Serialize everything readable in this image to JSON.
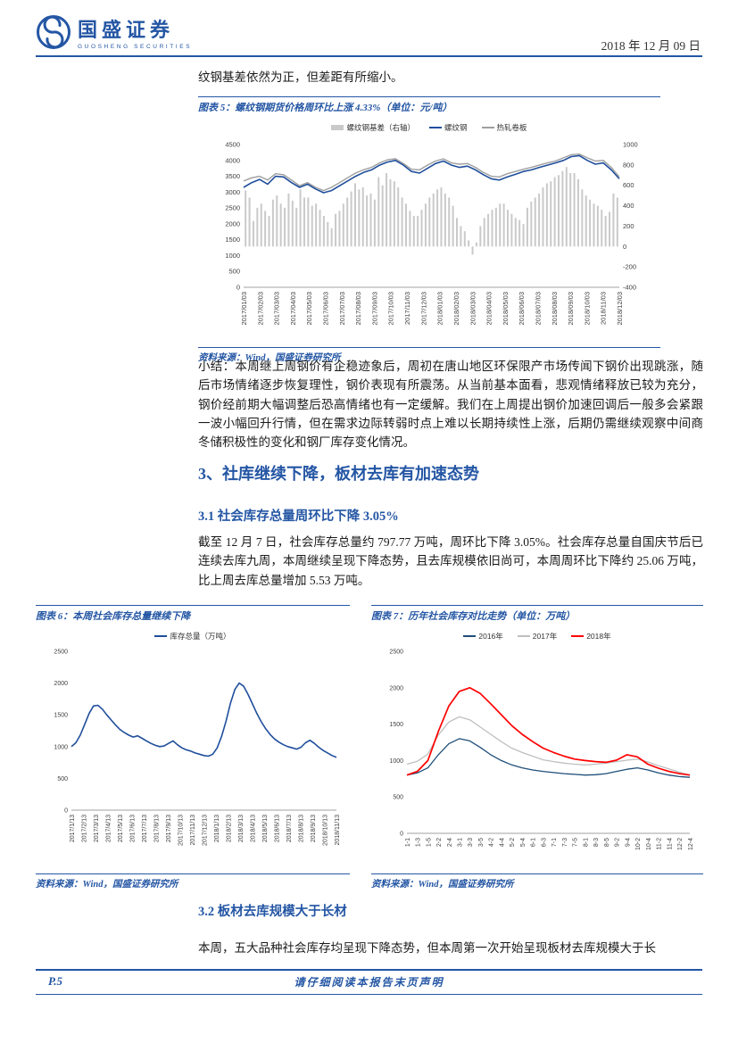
{
  "header": {
    "brand": "国盛证券",
    "brand_sub": "GUOSHENG SECURITIES",
    "date": "2018 年 12 月 09 日"
  },
  "intro_text": "纹钢基差依然为正，但差距有所缩小。",
  "figures": {
    "fig5": {
      "caption": "图表 5：螺纹钢期货价格周环比上涨 4.33%（单位：元/吨）",
      "source": "资料来源：Wind，国盛证券研究所"
    },
    "fig6": {
      "caption": "图表 6：本周社会库存总量继续下降",
      "source": "资料来源：Wind，国盛证券研究所"
    },
    "fig7": {
      "caption": "图表 7：历年社会库存对比走势（单位：万吨）",
      "source": "资料来源：Wind，国盛证券研究所"
    }
  },
  "summary_paragraph": "小结：本周继上周钢价有企稳迹象后，周初在唐山地区环保限产市场传闻下钢价出现跳涨，随后市场情绪逐步恢复理性，钢价表现有所震荡。从当前基本面看，悲观情绪释放已较为充分，钢价经前期大幅调整后恐高情绪也有一定缓解。我们在上周提出钢价加速回调后一般多会紧跟一波小幅回升行情，但在需求边际转弱时点上难以长期持续性上涨，后期仍需继续观察中间商冬储积极性的变化和钢厂库存变化情况。",
  "section3": {
    "title": "3、社库继续下降，板材去库有加速态势",
    "s31": {
      "title": "3.1 社会库存总量周环比下降 3.05%",
      "body": "截至 12 月 7 日，社会库存总量约 797.77 万吨，周环比下降 3.05%。社会库存总量自国庆节后已连续去库九周，本周继续呈现下降态势，且去库规模依旧尚可，本周周环比下降约 25.06 万吨，比上周去库总量增加 5.53 万吨。"
    },
    "s32": {
      "title": "3.2 板材去库规模大于长材",
      "body": "本周，五大品种社会库存均呈现下降态势，但本周第一次开始呈现板材去库规模大于长"
    }
  },
  "footer": {
    "page": "P.5",
    "disclaimer": "请仔细阅读本报告末页声明"
  },
  "chart_data": [
    {
      "id": "fig5",
      "type": "line+bar",
      "title": "螺纹钢期货价格周环比上涨 4.33%（单位：元/吨）",
      "legend": [
        {
          "label": "螺纹钢基差（右轴）",
          "color": "#C9C9C9",
          "type": "bar"
        },
        {
          "label": "螺纹钢",
          "color": "#1F4E9C",
          "type": "line"
        },
        {
          "label": "热轧卷板",
          "color": "#9E9E9E",
          "type": "line"
        }
      ],
      "axes": {
        "y_min": 0,
        "y_max": 4500,
        "y_ticks": [
          0,
          500,
          1000,
          1500,
          2000,
          2500,
          3000,
          3500,
          4000,
          4500
        ],
        "y2_min": -400,
        "y2_max": 1000,
        "y2_ticks": [
          -400,
          -200,
          0,
          200,
          400,
          600,
          800,
          1000
        ],
        "x_labels": [
          "2017/01/03",
          "2017/02/03",
          "2017/03/03",
          "2017/04/03",
          "2017/05/03",
          "2017/06/03",
          "2017/07/03",
          "2017/08/03",
          "2017/09/03",
          "2017/10/03",
          "2017/11/03",
          "2017/12/03",
          "2018/01/03",
          "2018/02/03",
          "2018/03/03",
          "2018/04/03",
          "2018/05/03",
          "2018/06/03",
          "2018/07/03",
          "2018/08/03",
          "2018/09/03",
          "2018/10/03",
          "2018/11/03",
          "2018/12/03"
        ]
      },
      "bars": {
        "name": "螺纹钢基差（右轴）",
        "color": "#C9C9C9",
        "axis": "y2",
        "values": [
          550,
          480,
          250,
          380,
          420,
          350,
          300,
          460,
          500,
          420,
          380,
          520,
          450,
          380,
          560,
          480,
          480,
          400,
          420,
          360,
          300,
          240,
          180,
          320,
          350,
          420,
          480,
          540,
          620,
          560,
          580,
          500,
          520,
          460,
          680,
          600,
          720,
          660,
          640,
          580,
          480,
          420,
          350,
          300,
          300,
          360,
          420,
          480,
          520,
          560,
          580,
          520,
          480,
          400,
          280,
          200,
          150,
          60,
          -80,
          40,
          200,
          280,
          320,
          360,
          380,
          420,
          420,
          360,
          320,
          280,
          260,
          220,
          380,
          440,
          480,
          520,
          580,
          620,
          640,
          680,
          700,
          740,
          780,
          720,
          720,
          660,
          560,
          500,
          460,
          420,
          400,
          360,
          300,
          340,
          520,
          480
        ]
      },
      "series": [
        {
          "name": "螺纹钢",
          "color": "#1F4E9C",
          "width": 1.6,
          "values": [
            3150,
            3300,
            3400,
            3250,
            3500,
            3480,
            3300,
            3150,
            3250,
            3100,
            2980,
            3050,
            3200,
            3350,
            3500,
            3620,
            3700,
            3850,
            3950,
            4000,
            3850,
            3650,
            3600,
            3750,
            3900,
            3980,
            3850,
            3780,
            3820,
            3700,
            3550,
            3420,
            3380,
            3480,
            3560,
            3650,
            3700,
            3780,
            3850,
            3920,
            4000,
            4120,
            4150,
            4000,
            3880,
            3920,
            3700,
            3420
          ]
        },
        {
          "name": "热轧卷板",
          "color": "#9E9E9E",
          "width": 1.4,
          "values": [
            3350,
            3450,
            3500,
            3380,
            3580,
            3550,
            3380,
            3200,
            3300,
            3150,
            3050,
            3150,
            3300,
            3450,
            3600,
            3700,
            3780,
            3920,
            4020,
            4050,
            3900,
            3720,
            3700,
            3850,
            3980,
            4050,
            3920,
            3880,
            3900,
            3780,
            3620,
            3500,
            3480,
            3580,
            3650,
            3720,
            3780,
            3850,
            3920,
            3980,
            4080,
            4180,
            4200,
            4080,
            3980,
            4000,
            3780,
            3480
          ]
        }
      ]
    },
    {
      "id": "fig6",
      "type": "line",
      "title": "本周社会库存总量继续下降",
      "legend": [
        {
          "label": "库存总量（万吨）",
          "color": "#1F4E9C",
          "type": "line"
        }
      ],
      "axes": {
        "y_min": 0,
        "y_max": 2500,
        "y_ticks": [
          0,
          500,
          1000,
          1500,
          2000,
          2500
        ],
        "x_labels": [
          "2017/1/13",
          "2017/2/13",
          "2017/3/13",
          "2017/4/13",
          "2017/5/13",
          "2017/6/13",
          "2017/7/13",
          "2017/8/13",
          "2017/9/13",
          "2017/10/13",
          "2017/11/13",
          "2017/12/13",
          "2018/1/13",
          "2018/2/13",
          "2018/3/13",
          "2018/4/13",
          "2018/5/13",
          "2018/6/13",
          "2018/7/13",
          "2018/8/13",
          "2018/9/13",
          "2018/10/13",
          "2018/11/13"
        ]
      },
      "series": [
        {
          "name": "库存总量（万吨）",
          "color": "#1F4E9C",
          "width": 1.6,
          "values": [
            1000,
            1060,
            1180,
            1350,
            1520,
            1640,
            1650,
            1590,
            1500,
            1420,
            1340,
            1270,
            1220,
            1180,
            1150,
            1170,
            1130,
            1090,
            1050,
            1020,
            1000,
            1010,
            1050,
            1090,
            1030,
            980,
            950,
            930,
            900,
            880,
            860,
            850,
            880,
            980,
            1160,
            1400,
            1680,
            1900,
            2000,
            1950,
            1820,
            1670,
            1520,
            1390,
            1280,
            1190,
            1120,
            1070,
            1030,
            1000,
            980,
            960,
            990,
            1060,
            1100,
            1050,
            990,
            940,
            900,
            860,
            830
          ]
        }
      ]
    },
    {
      "id": "fig7",
      "type": "line",
      "title": "历年社会库存对比走势（单位：万吨）",
      "legend": [
        {
          "label": "2016年",
          "color": "#1F4E79",
          "type": "line"
        },
        {
          "label": "2017年",
          "color": "#BFBFBF",
          "type": "line"
        },
        {
          "label": "2018年",
          "color": "#FF0000",
          "type": "line"
        }
      ],
      "axes": {
        "y_min": 0,
        "y_max": 2500,
        "y_ticks": [
          0,
          500,
          1000,
          1500,
          2000,
          2500
        ],
        "x_labels": [
          "1-1",
          "1-3",
          "1-5",
          "2-2",
          "2-4",
          "3-1",
          "3-3",
          "3-5",
          "4-2",
          "4-4",
          "5-2",
          "5-4",
          "6-1",
          "6-3",
          "7-1",
          "7-3",
          "7-5",
          "8-1",
          "8-3",
          "8-5",
          "9-2",
          "9-4",
          "10-2",
          "10-4",
          "11-2",
          "11-4",
          "12-2",
          "12-4"
        ]
      },
      "series": [
        {
          "name": "2016年",
          "color": "#1F4E79",
          "width": 1.3,
          "values": [
            800,
            830,
            900,
            1080,
            1230,
            1300,
            1270,
            1180,
            1080,
            1000,
            940,
            900,
            870,
            850,
            835,
            820,
            810,
            800,
            805,
            820,
            850,
            880,
            900,
            870,
            830,
            800,
            780,
            770
          ]
        },
        {
          "name": "2017年",
          "color": "#BFBFBF",
          "width": 1.3,
          "values": [
            950,
            990,
            1090,
            1350,
            1530,
            1600,
            1560,
            1460,
            1360,
            1260,
            1170,
            1110,
            1060,
            1010,
            985,
            965,
            950,
            940,
            950,
            965,
            985,
            1005,
            1020,
            980,
            930,
            885,
            840,
            800
          ]
        },
        {
          "name": "2018年",
          "color": "#FF0000",
          "width": 1.7,
          "values": [
            800,
            850,
            1000,
            1400,
            1750,
            1950,
            2000,
            1920,
            1780,
            1630,
            1480,
            1360,
            1260,
            1170,
            1110,
            1060,
            1020,
            1000,
            985,
            975,
            1005,
            1080,
            1050,
            950,
            895,
            850,
            820,
            800
          ]
        }
      ]
    }
  ]
}
